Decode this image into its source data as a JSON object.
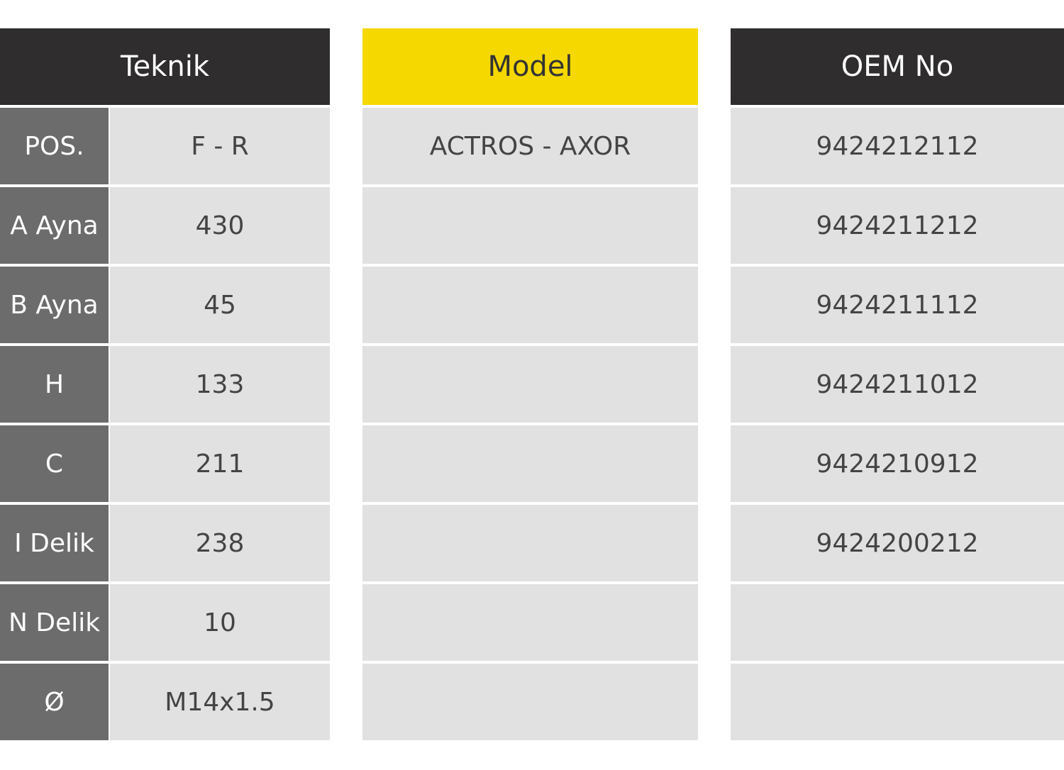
{
  "teknik": {
    "title": "Teknik",
    "rows": [
      [
        "POS.",
        "F - R"
      ],
      [
        "A Ayna",
        "430"
      ],
      [
        "B Ayna",
        "45"
      ],
      [
        "H",
        "133"
      ],
      [
        "C",
        "211"
      ],
      [
        "I Delik",
        "238"
      ],
      [
        "N Delik",
        "10"
      ],
      [
        "Ø",
        "M14x1.5"
      ]
    ]
  },
  "model": {
    "title": "Model",
    "rows": [
      "ACTROS - AXOR"
    ]
  },
  "oem": {
    "title": "OEM No",
    "rows": [
      "9424212112",
      "9424211212",
      "9424211112",
      "9424211012",
      "9424210912",
      "9424200212"
    ]
  }
}
